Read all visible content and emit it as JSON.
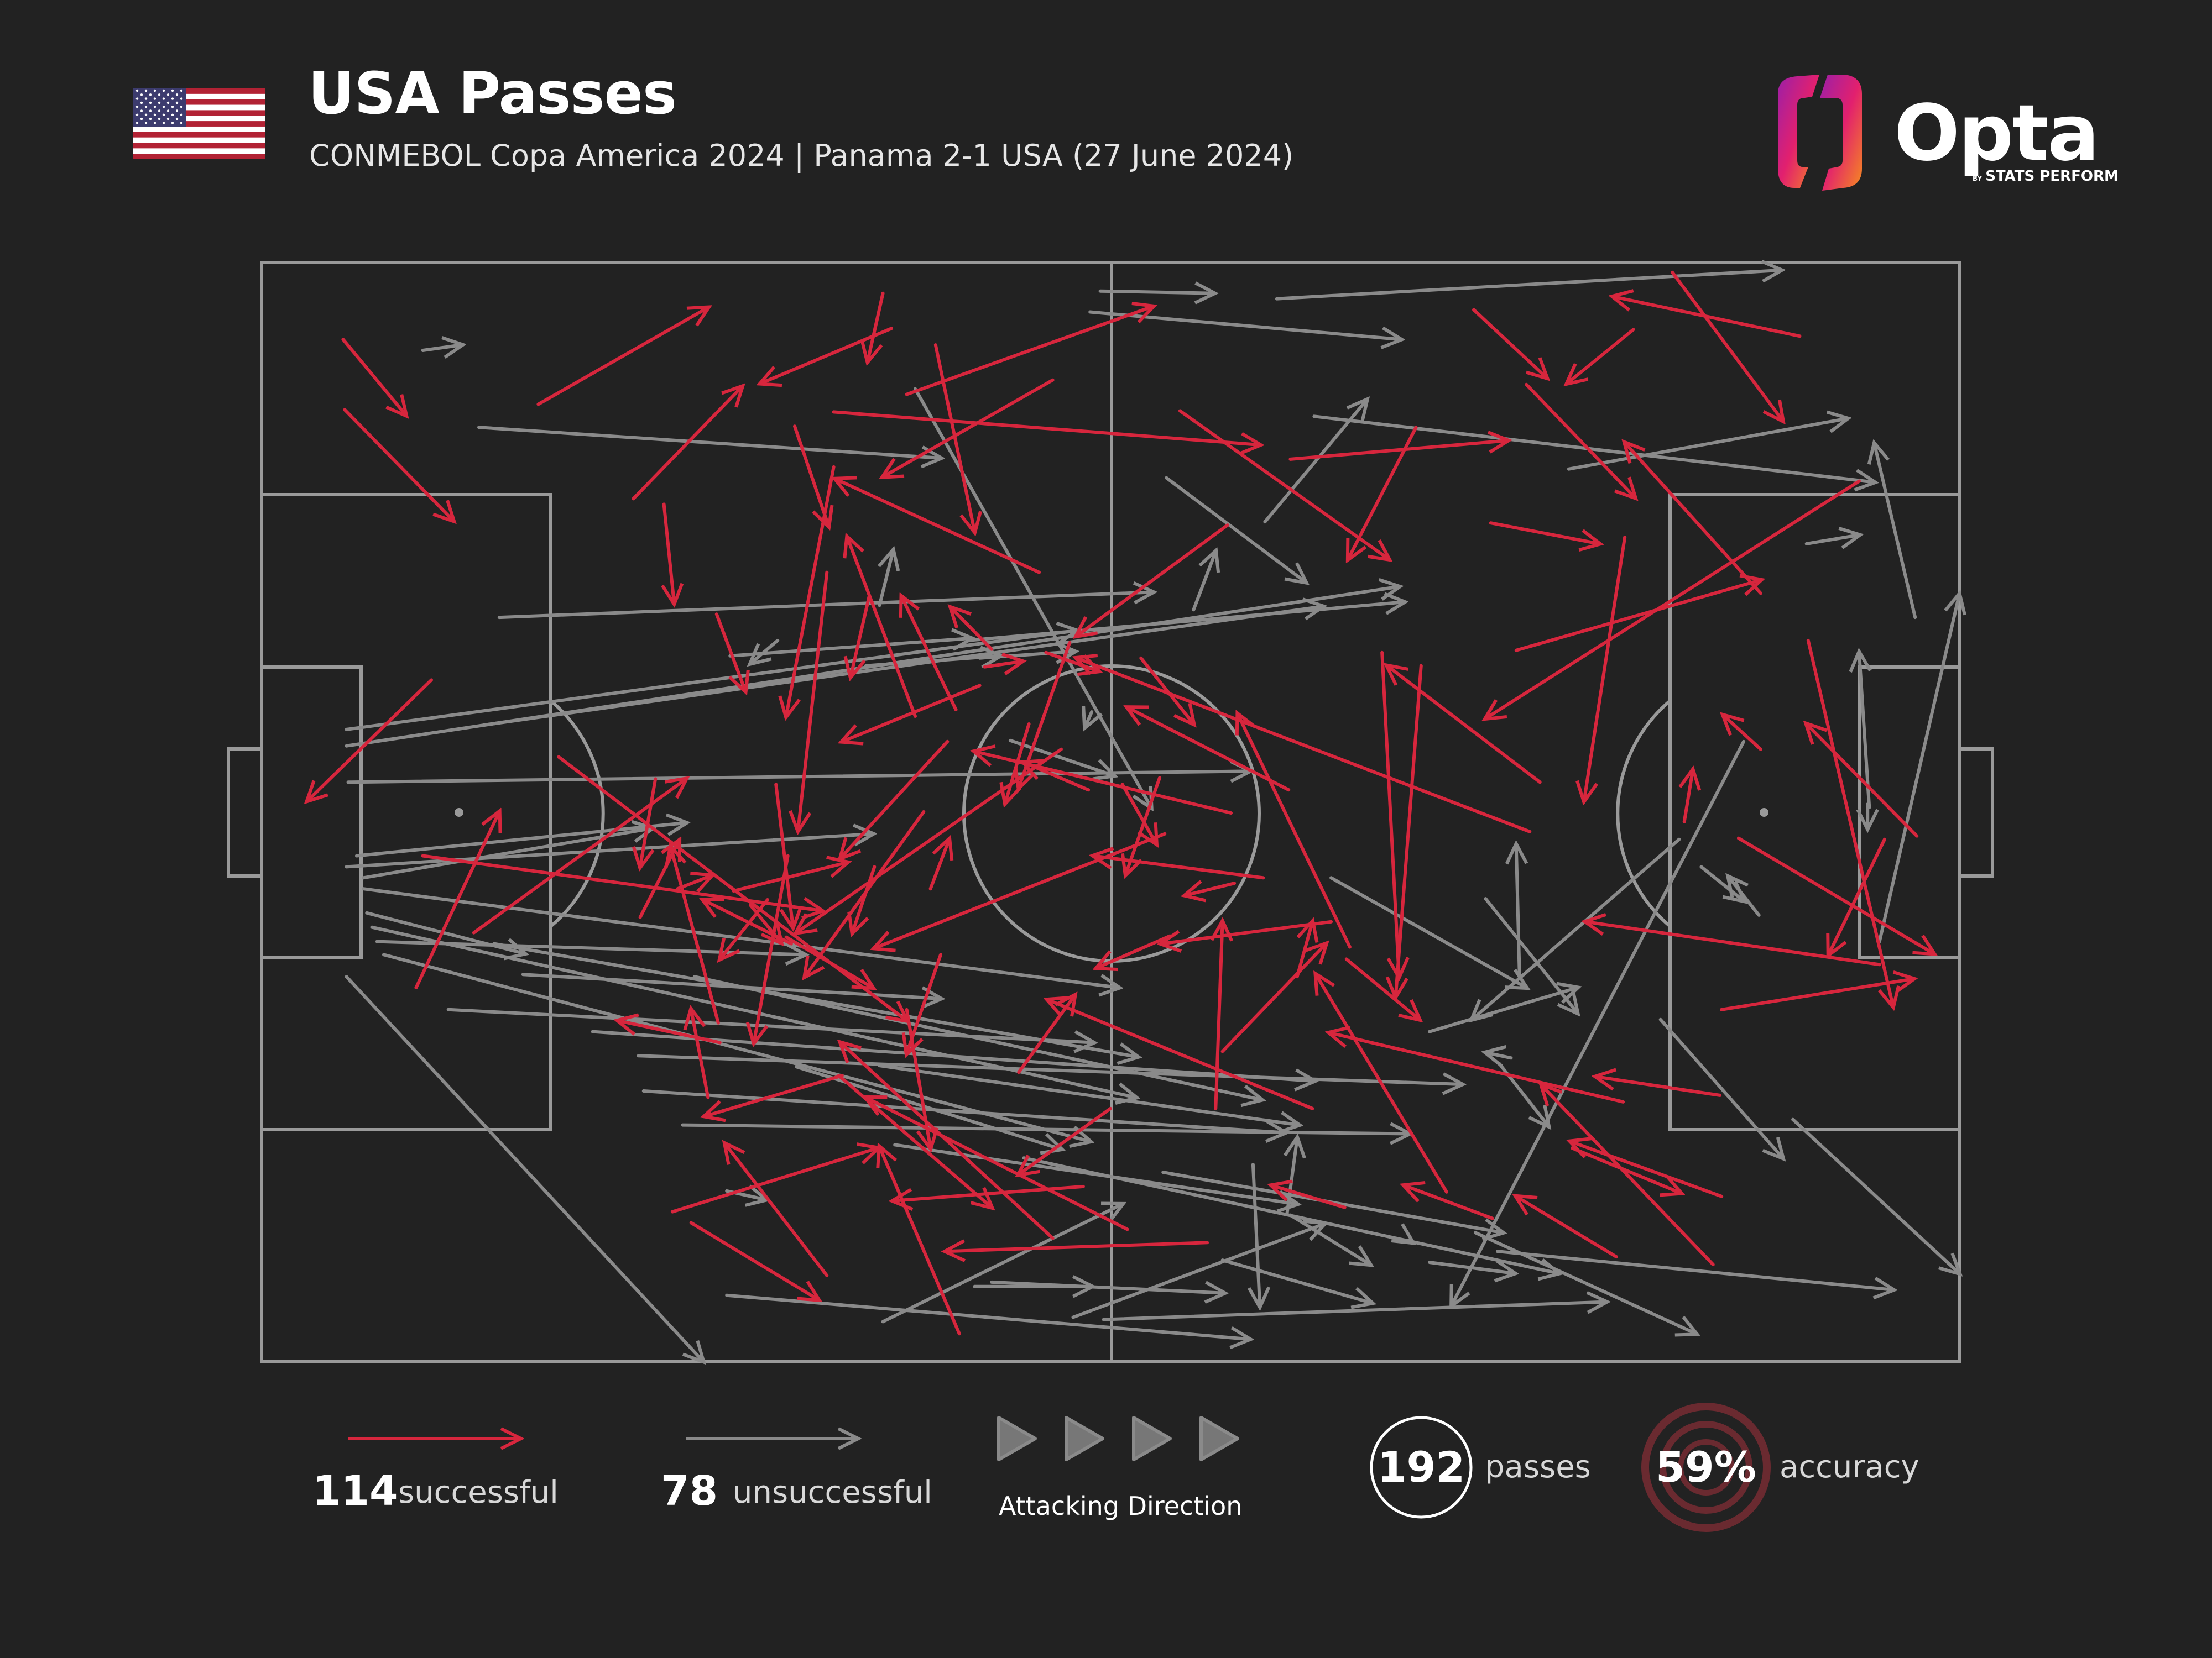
{
  "header": {
    "title": "USA Passes",
    "subtitle": "CONMEBOL Copa America 2024 | Panama 2-1 USA (27 June 2024)"
  },
  "brand": {
    "name": "Opta",
    "tagline_by": "BY",
    "tagline": "STATS PERFORM"
  },
  "icons": {
    "flag": "usa-flag-icon",
    "brand": "opta-logo-icon",
    "direction": "direction-arrows-icon"
  },
  "colors": {
    "background": "#222222",
    "successful": "#d7263d",
    "unsuccessful": "#8a8a8a",
    "pitch_lines": "#9a9a9a"
  },
  "legend": {
    "successful": {
      "count": "114",
      "label": "successful"
    },
    "unsuccessful": {
      "count": "78",
      "label": "unsuccessful"
    },
    "direction_label": "Attacking Direction",
    "passes": {
      "value": "192",
      "label": "passes"
    },
    "accuracy": {
      "value": "59%",
      "label": "accuracy"
    }
  },
  "chart_data": {
    "type": "scatter",
    "description_units": "pitch coordinates 0-100 (x = attacking direction, y = 0 top touchline to 100 bottom touchline)",
    "xlim": [
      0,
      100
    ],
    "ylim": [
      0,
      100
    ],
    "series": [
      {
        "name": "successful",
        "passes": [
          [
            4.8,
            7.0,
            8.5,
            13.9
          ],
          [
            4.9,
            13.4,
            11.3,
            23.5
          ],
          [
            16.3,
            12.9,
            26.3,
            4.1
          ],
          [
            21.9,
            21.5,
            28.3,
            11.3
          ],
          [
            10.0,
            38.0,
            2.7,
            49.0
          ],
          [
            9.1,
            66.0,
            14.0,
            50.0
          ],
          [
            17.5,
            45.0,
            38.0,
            69.0
          ],
          [
            9.5,
            54.0,
            33.0,
            59.0
          ],
          [
            12.5,
            61.0,
            25.0,
            47.0
          ],
          [
            23.7,
            22.0,
            24.3,
            31.0
          ],
          [
            26.8,
            32.0,
            28.5,
            39.0
          ],
          [
            31.4,
            14.9,
            33.4,
            24.0
          ],
          [
            37.1,
            6.0,
            29.4,
            11.0
          ],
          [
            36.6,
            2.8,
            35.7,
            9.0
          ],
          [
            39.7,
            7.5,
            42.0,
            24.5
          ],
          [
            38.0,
            12.0,
            52.5,
            4.0
          ],
          [
            33.7,
            13.6,
            58.8,
            16.6
          ],
          [
            46.6,
            10.7,
            36.6,
            19.5
          ],
          [
            54.1,
            13.5,
            66.4,
            27.0
          ],
          [
            56.9,
            23.9,
            48.0,
            34.0
          ],
          [
            60.6,
            17.9,
            73.4,
            16.2
          ],
          [
            68.0,
            15.0,
            64.0,
            27.0
          ],
          [
            71.4,
            4.3,
            75.7,
            10.5
          ],
          [
            74.5,
            11.1,
            80.9,
            21.4
          ],
          [
            80.8,
            6.1,
            76.9,
            11.0
          ],
          [
            80.3,
            25.0,
            77.9,
            49.0
          ],
          [
            72.4,
            23.7,
            78.8,
            25.6
          ],
          [
            73.9,
            35.3,
            88.3,
            28.9
          ],
          [
            88.3,
            30.1,
            80.3,
            16.4
          ],
          [
            83.1,
            0.9,
            89.6,
            14.4
          ],
          [
            90.6,
            6.7,
            79.6,
            3.1
          ],
          [
            94.1,
            19.9,
            72.1,
            41.5
          ],
          [
            91.1,
            34.4,
            96.1,
            67.7
          ],
          [
            95.6,
            52.5,
            92.3,
            63.0
          ],
          [
            95.3,
            63.9,
            78.0,
            60.0
          ],
          [
            86.0,
            85.0,
            77.1,
            80.0
          ],
          [
            85.5,
            91.2,
            75.4,
            74.9
          ],
          [
            79.8,
            90.5,
            73.9,
            85.0
          ],
          [
            72.5,
            87.0,
            67.3,
            84.0
          ],
          [
            63.8,
            86.0,
            59.5,
            84.0
          ],
          [
            56.2,
            77.0,
            56.6,
            60.0
          ],
          [
            61.0,
            65.0,
            61.9,
            60.0
          ],
          [
            66.0,
            35.5,
            67.0,
            65.0
          ],
          [
            68.3,
            36.7,
            66.8,
            66.8
          ],
          [
            75.3,
            47.3,
            66.3,
            36.7
          ],
          [
            74.7,
            51.8,
            48.0,
            36.0
          ],
          [
            77.2,
            80.6,
            83.6,
            84.7
          ],
          [
            80.2,
            76.4,
            62.9,
            70.1
          ],
          [
            69.8,
            84.6,
            62.1,
            64.8
          ],
          [
            61.9,
            77.0,
            46.3,
            67.1
          ],
          [
            56.6,
            71.8,
            62.7,
            62.0
          ],
          [
            50.0,
            77.0,
            44.6,
            83.0
          ],
          [
            55.7,
            89.2,
            40.3,
            90.0
          ],
          [
            51.0,
            88.0,
            35.6,
            76.0
          ],
          [
            46.6,
            88.8,
            34.1,
            71.0
          ],
          [
            41.1,
            97.5,
            36.4,
            80.5
          ],
          [
            48.4,
            84.1,
            37.2,
            85.4
          ],
          [
            53.5,
            61.3,
            49.2,
            64.2
          ],
          [
            63.0,
            60.0,
            53.0,
            62.0
          ],
          [
            59.0,
            56.0,
            49.0,
            54.0
          ],
          [
            60.5,
            48.0,
            51.0,
            40.5
          ],
          [
            57.1,
            50.1,
            42.0,
            44.5
          ],
          [
            53.2,
            52.0,
            36.1,
            62.4
          ],
          [
            52.9,
            46.9,
            50.9,
            55.7
          ],
          [
            48.7,
            48.0,
            44.9,
            45.5
          ],
          [
            47.1,
            44.3,
            31.5,
            61.0
          ],
          [
            45.2,
            42.0,
            43.8,
            49.2
          ],
          [
            45.8,
            28.2,
            33.8,
            19.7
          ],
          [
            43.0,
            35.2,
            40.6,
            31.4
          ],
          [
            42.3,
            38.5,
            34.2,
            43.6
          ],
          [
            40.9,
            40.7,
            37.7,
            30.4
          ],
          [
            38.5,
            41.3,
            34.5,
            25.0
          ],
          [
            33.3,
            28.2,
            31.6,
            51.7
          ],
          [
            33.7,
            18.6,
            30.9,
            41.3
          ],
          [
            35.8,
            30.3,
            34.7,
            37.7
          ],
          [
            40.4,
            43.6,
            34.1,
            54.2
          ],
          [
            42.6,
            36.8,
            44.8,
            36.3
          ],
          [
            46.2,
            35.5,
            49.3,
            37.2
          ],
          [
            47.6,
            34.6,
            44.6,
            47.8
          ],
          [
            51.8,
            36.0,
            54.9,
            42.0
          ],
          [
            39.4,
            57.0,
            40.5,
            52.5
          ],
          [
            40.0,
            63.0,
            38.0,
            72.0
          ],
          [
            38.0,
            68.0,
            39.4,
            80.6
          ],
          [
            31.2,
            62.0,
            26.0,
            58.0
          ],
          [
            26.3,
            76.0,
            25.3,
            68.0
          ],
          [
            30.3,
            47.5,
            31.3,
            60.5
          ],
          [
            29.8,
            58.0,
            27.0,
            63.4
          ],
          [
            26.9,
            69.2,
            24.1,
            53.2
          ],
          [
            22.3,
            59.6,
            24.6,
            52.6
          ],
          [
            28.8,
            58.5,
            30.6,
            61.9
          ],
          [
            24.5,
            57.0,
            26.5,
            55.8
          ],
          [
            31.0,
            54.0,
            29.0,
            71.0
          ],
          [
            36.1,
            55.0,
            34.8,
            61.0
          ],
          [
            39.0,
            50.0,
            32.0,
            65.0
          ],
          [
            24.2,
            86.4,
            36.3,
            80.6
          ],
          [
            34.2,
            74.0,
            26.1,
            77.7
          ],
          [
            30.9,
            61.4,
            36.0,
            66.0
          ],
          [
            44.6,
            73.7,
            47.9,
            66.7
          ],
          [
            33.3,
            92.2,
            27.3,
            80.2
          ],
          [
            25.3,
            87.4,
            32.8,
            94.4
          ],
          [
            27.0,
            71.0,
            21.0,
            69.0
          ],
          [
            23.2,
            47.0,
            22.3,
            55.0
          ],
          [
            27.8,
            57.2,
            34.5,
            54.6
          ],
          [
            34.0,
            74.0,
            43.0,
            86.0
          ],
          [
            50.7,
            47.5,
            52.7,
            52.9
          ],
          [
            63.9,
            63.4,
            68.2,
            68.9
          ],
          [
            64.1,
            62.3,
            57.5,
            41.1
          ],
          [
            57.3,
            56.5,
            54.4,
            57.6
          ],
          [
            86.0,
            68.0,
            97.3,
            65.2
          ],
          [
            87.0,
            52.4,
            98.5,
            62.9
          ],
          [
            83.8,
            50.9,
            84.3,
            46.2
          ],
          [
            97.5,
            52.2,
            91.0,
            42.0
          ],
          [
            85.9,
            75.8,
            78.6,
            74.1
          ],
          [
            88.3,
            44.3,
            86.1,
            41.2
          ]
        ]
      },
      {
        "name": "unsuccessful",
        "passes": [
          [
            9.5,
            8.0,
            11.8,
            7.5
          ],
          [
            12.8,
            15.0,
            40.0,
            17.8
          ],
          [
            14.0,
            32.3,
            52.5,
            30.0
          ],
          [
            13.1,
            42.1,
            62.5,
            31.3
          ],
          [
            5.0,
            42.5,
            48.0,
            33.5
          ],
          [
            5.0,
            44.0,
            67.0,
            29.5
          ],
          [
            5.1,
            47.3,
            58.2,
            46.3
          ],
          [
            5.6,
            54.0,
            25.0,
            51.0
          ],
          [
            5.0,
            55.0,
            36.0,
            52.0
          ],
          [
            6.0,
            56.0,
            23.0,
            51.5
          ],
          [
            6.0,
            57.0,
            50.5,
            66.0
          ],
          [
            6.2,
            59.2,
            15.5,
            62.9
          ],
          [
            6.5,
            60.5,
            51.5,
            76.0
          ],
          [
            6.8,
            61.8,
            32.0,
            63.0
          ],
          [
            7.2,
            63.0,
            48.8,
            80.0
          ],
          [
            13.7,
            62.0,
            51.6,
            72.3
          ],
          [
            15.4,
            64.8,
            40.0,
            67.0
          ],
          [
            11.0,
            68.0,
            49.0,
            71.0
          ],
          [
            19.5,
            70.0,
            62.0,
            74.5
          ],
          [
            25.5,
            65.0,
            58.9,
            76.2
          ],
          [
            22.2,
            72.2,
            70.7,
            74.8
          ],
          [
            22.5,
            75.4,
            60.3,
            79.2
          ],
          [
            24.8,
            78.5,
            67.6,
            79.3
          ],
          [
            37.3,
            80.3,
            61.0,
            85.7
          ],
          [
            36.4,
            73.1,
            61.1,
            78.5
          ],
          [
            31.5,
            73.2,
            47.1,
            80.7
          ],
          [
            5.0,
            65.0,
            26.0,
            100.0
          ],
          [
            27.4,
            84.5,
            29.7,
            85.3
          ],
          [
            27.4,
            94.0,
            58.2,
            98.0
          ],
          [
            42.0,
            93.2,
            48.9,
            93.2
          ],
          [
            56.6,
            90.8,
            65.4,
            94.7
          ],
          [
            49.6,
            96.2,
            79.2,
            94.6
          ],
          [
            43.0,
            92.8,
            56.7,
            93.8
          ],
          [
            58.4,
            82.1,
            58.8,
            95.0
          ],
          [
            53.1,
            82.8,
            73.1,
            88.3
          ],
          [
            47.8,
            96.0,
            62.6,
            87.5
          ],
          [
            36.6,
            96.4,
            50.7,
            85.7
          ],
          [
            60.6,
            86.7,
            65.3,
            91.2
          ],
          [
            44.9,
            81.5,
            76.4,
            92.0
          ],
          [
            67.6,
            89.0,
            67.8,
            89.2
          ],
          [
            60.4,
            86.6,
            61.0,
            79.7
          ],
          [
            68.8,
            91.0,
            73.8,
            92.0
          ],
          [
            71.5,
            88.3,
            84.5,
            97.5
          ],
          [
            90.2,
            78.0,
            100.0,
            92.0
          ],
          [
            82.4,
            68.9,
            89.6,
            81.5
          ],
          [
            72.9,
            72.9,
            75.8,
            78.6
          ],
          [
            74.1,
            65.1,
            73.9,
            53.0
          ],
          [
            68.8,
            70.0,
            77.5,
            66.0
          ],
          [
            73.6,
            72.4,
            72.1,
            71.9
          ],
          [
            63.0,
            56.0,
            74.5,
            66.0
          ],
          [
            72.1,
            57.9,
            77.5,
            68.3
          ],
          [
            87.3,
            43.6,
            70.1,
            94.9
          ],
          [
            83.5,
            52.5,
            71.3,
            68.9
          ],
          [
            88.2,
            59.4,
            86.4,
            55.9
          ],
          [
            84.8,
            55.0,
            87.3,
            58.1
          ],
          [
            72.8,
            90.0,
            96.1,
            93.5
          ],
          [
            95.3,
            61.8,
            100.0,
            30.2
          ],
          [
            94.6,
            49.3,
            94.6,
            51.5
          ],
          [
            94.7,
            49.6,
            94.1,
            35.5
          ],
          [
            97.4,
            32.3,
            95.0,
            16.5
          ],
          [
            91.0,
            25.6,
            94.1,
            24.8
          ],
          [
            53.3,
            19.6,
            61.5,
            29.1
          ],
          [
            77.0,
            18.8,
            93.4,
            14.2
          ],
          [
            48.8,
            4.5,
            67.1,
            7.0
          ],
          [
            49.4,
            2.6,
            56.1,
            2.8
          ],
          [
            59.8,
            3.3,
            89.5,
            0.7
          ],
          [
            62.0,
            14.0,
            95.0,
            20.0
          ],
          [
            59.1,
            23.6,
            65.1,
            12.5
          ],
          [
            41.6,
            34.4,
            67.3,
            30.9
          ],
          [
            42.3,
            36.0,
            47.9,
            35.4
          ],
          [
            54.9,
            31.6,
            56.2,
            26.3
          ],
          [
            35.6,
            36.7,
            43.5,
            35.8
          ],
          [
            36.4,
            31.2,
            37.2,
            26.2
          ],
          [
            30.4,
            34.4,
            28.8,
            36.5
          ],
          [
            27.6,
            35.8,
            41.8,
            34.2
          ],
          [
            38.5,
            11.5,
            52.4,
            49.6
          ],
          [
            44.1,
            43.5,
            50.2,
            46.7
          ],
          [
            48.9,
            40.9,
            48.5,
            42.3
          ]
        ]
      }
    ]
  }
}
